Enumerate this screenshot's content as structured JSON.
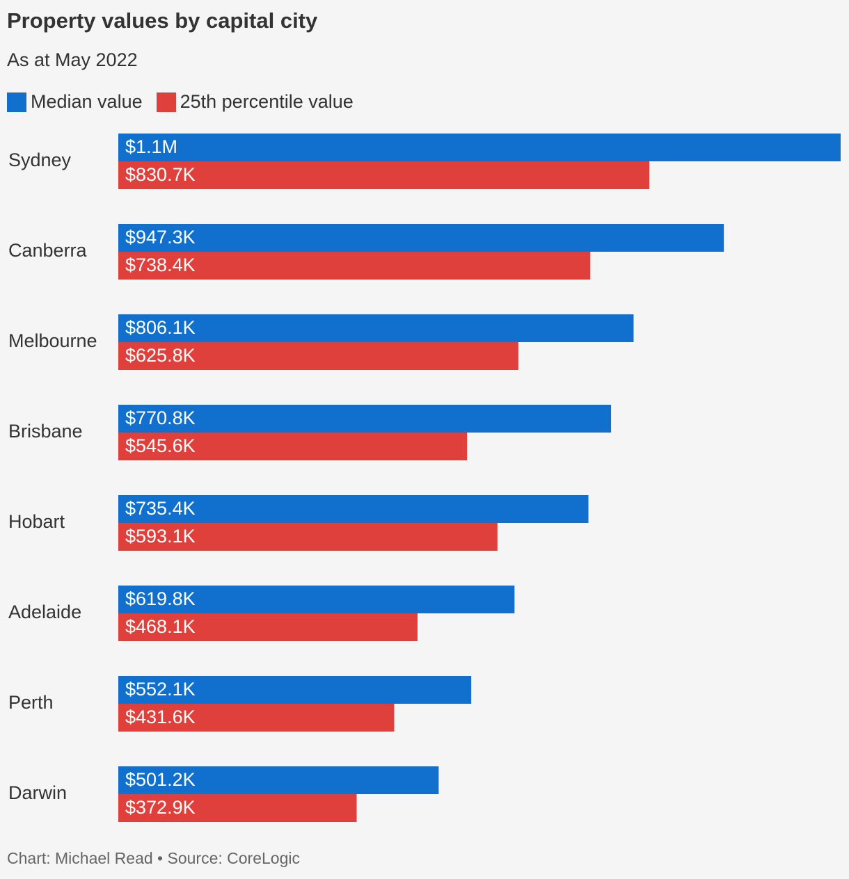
{
  "title": "Property values by capital city",
  "subtitle": "As at May 2022",
  "footer": "Chart: Michael Read • Source: CoreLogic",
  "colors": {
    "median": "#1170cd",
    "percentile25": "#e0403c",
    "background": "#f5f5f5"
  },
  "chart_data": {
    "type": "bar",
    "orientation": "horizontal",
    "title": "Property values by capital city",
    "subtitle": "As at May 2022",
    "categories": [
      "Sydney",
      "Canberra",
      "Melbourne",
      "Brisbane",
      "Hobart",
      "Adelaide",
      "Perth",
      "Darwin"
    ],
    "series": [
      {
        "name": "Median value",
        "color": "#1170cd",
        "values": [
          1130000,
          947300,
          806100,
          770800,
          735400,
          619800,
          552100,
          501200
        ],
        "labels": [
          "$1.1M",
          "$947.3K",
          "$806.1K",
          "$770.8K",
          "$735.4K",
          "$619.8K",
          "$552.1K",
          "$501.2K"
        ]
      },
      {
        "name": "25th percentile value",
        "color": "#e0403c",
        "values": [
          830700,
          738400,
          625800,
          545600,
          593100,
          468100,
          431600,
          372900
        ],
        "labels": [
          "$830.7K",
          "$738.4K",
          "$625.8K",
          "$545.6K",
          "$593.1K",
          "$468.1K",
          "$431.6K",
          "$372.9K"
        ]
      }
    ],
    "xlim": [
      0,
      1130000
    ],
    "grid": false,
    "legend": "top-left",
    "source": "CoreLogic"
  }
}
